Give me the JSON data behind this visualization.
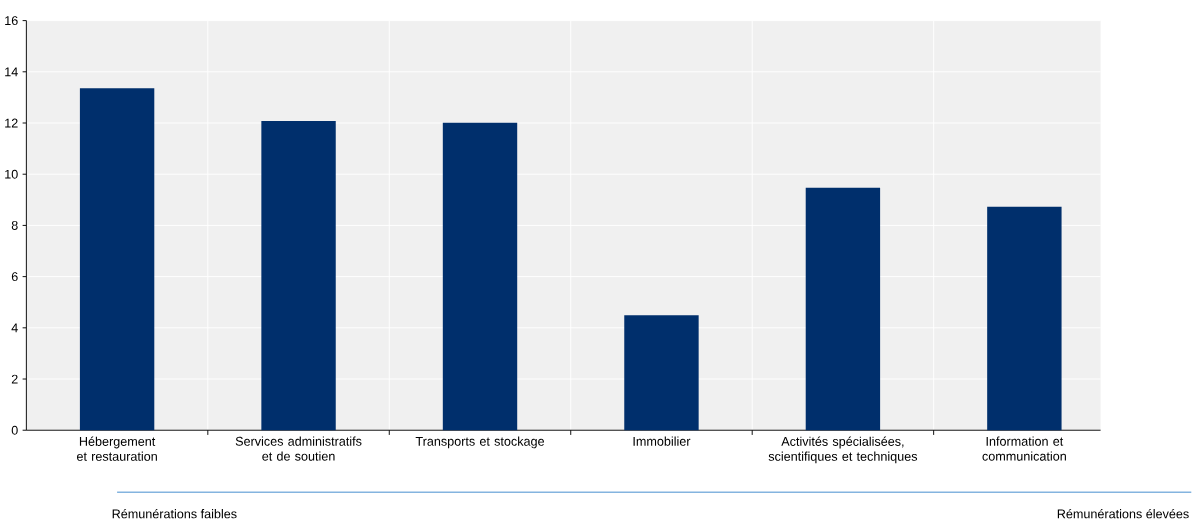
{
  "chart_data": {
    "type": "bar",
    "categories": [
      "Hébergement et restauration",
      "Services administratifs et de soutien",
      "Transports et stockage",
      "Immobilier",
      "Activités spécialisées, scientifiques et techniques",
      "Information et communication"
    ],
    "values": [
      13.36,
      12.08,
      12.01,
      4.49,
      9.47,
      8.73
    ],
    "color": "#002f6c",
    "ylim": [
      0,
      16
    ],
    "yticks": [
      0,
      2,
      4,
      6,
      8,
      10,
      12,
      14,
      16
    ],
    "grid": true,
    "annotations": [
      "Rémunérations faibles",
      "Rémunérations élevées"
    ]
  }
}
